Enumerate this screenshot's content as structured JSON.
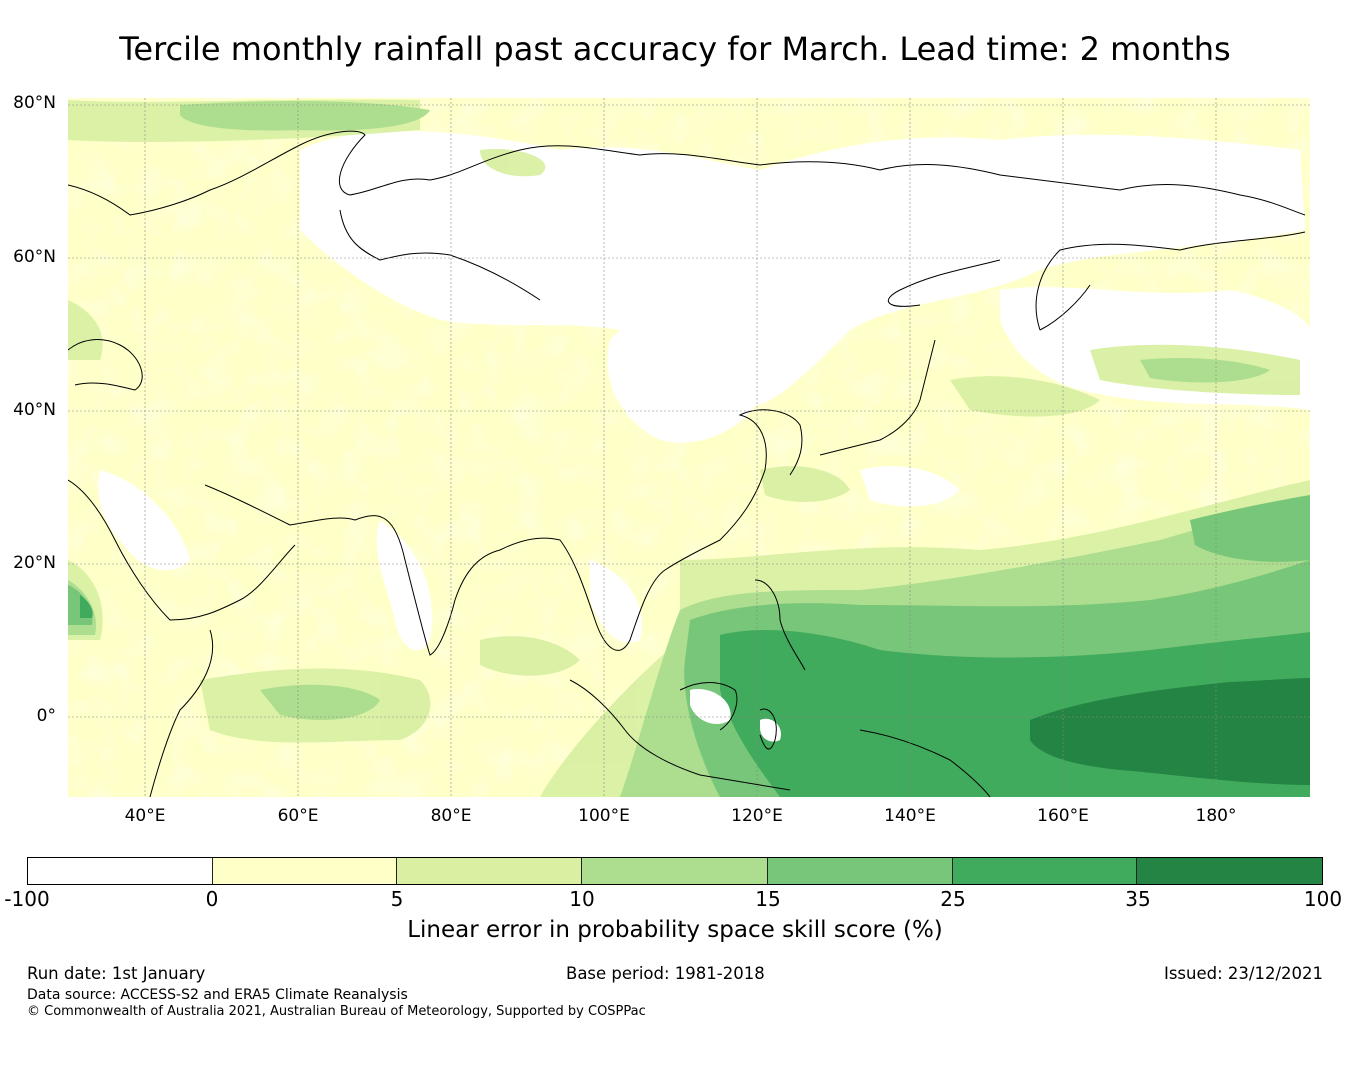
{
  "title": "Tercile monthly rainfall past accuracy for March. Lead time: 2 months",
  "map": {
    "y_axis_labels": [
      "80°N",
      "60°N",
      "40°N",
      "20°N",
      "0°"
    ],
    "x_axis_labels": [
      "40°E",
      "60°E",
      "80°E",
      "100°E",
      "120°E",
      "140°E",
      "160°E",
      "180°"
    ],
    "colors": {
      "land_outline": "#000000",
      "grid": "#888888",
      "c0": "#ffffff",
      "c1": "#ffffc8",
      "c2": "#d9f0a3",
      "c3": "#addd8e",
      "c4": "#78c679",
      "c5": "#41ab5d",
      "c6": "#238443"
    }
  },
  "colorbar": {
    "ticks": [
      "-100",
      "0",
      "5",
      "10",
      "15",
      "25",
      "35",
      "100"
    ],
    "colors": [
      "#ffffff",
      "#ffffc8",
      "#d9f0a3",
      "#addd8e",
      "#78c679",
      "#41ab5d",
      "#238443"
    ],
    "label": "Linear error in probability space skill score (%)"
  },
  "footer": {
    "run_date": "Run date: 1st January",
    "base_period": "Base period: 1981-2018",
    "issued": "Issued: 23/12/2021",
    "data_source": "Data source: ACCESS-S2 and ERA5 Climate Reanalysis",
    "copyright": "© Commonwealth of Australia 2021, Australian Bureau of Meteorology, Supported by COSPPac"
  }
}
